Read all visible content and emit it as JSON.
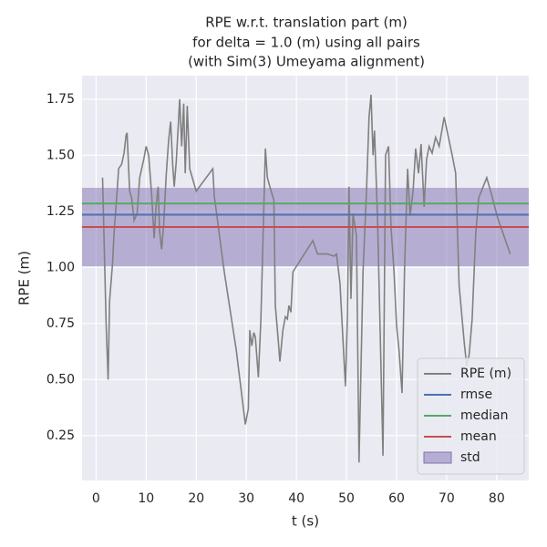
{
  "chart_data": {
    "type": "line",
    "title": [
      "RPE w.r.t. translation part (m)",
      "for delta = 1.0 (m) using all pairs",
      "(with Sim(3) Umeyama alignment)"
    ],
    "xlabel": "t (s)",
    "ylabel": "RPE (m)",
    "xlim": [
      -2.8,
      86.4
    ],
    "ylim": [
      0.05,
      1.855
    ],
    "xticks": [
      0,
      10,
      20,
      30,
      40,
      50,
      60,
      70,
      80
    ],
    "yticks": [
      0.25,
      {
        "value": 0.5,
        "label": "0.50"
      },
      0.75,
      {
        "value": 1.0,
        "label": "1.00"
      },
      1.25,
      {
        "value": 1.5,
        "label": "1.50"
      },
      1.75
    ],
    "grid": true,
    "legend": "lower right",
    "series": [
      {
        "name": "RPE (m)",
        "color": "#808080",
        "x": [
          1.3,
          2.0,
          2.4,
          2.7,
          3.3,
          3.6,
          4.2,
          4.5,
          5.1,
          5.6,
          6.0,
          6.2,
          6.7,
          7.1,
          7.6,
          8.2,
          8.7,
          9.5,
          10.0,
          10.5,
          11.1,
          11.6,
          12.0,
          12.4,
          12.7,
          13.1,
          13.5,
          14.0,
          14.5,
          14.9,
          15.3,
          15.6,
          16.0,
          16.4,
          16.7,
          17.1,
          17.5,
          17.8,
          18.2,
          18.7,
          20.0,
          23.3,
          23.6,
          25.6,
          28.0,
          29.8,
          30.4,
          30.7,
          31.1,
          31.5,
          31.8,
          32.4,
          32.9,
          33.8,
          34.2,
          34.7,
          35.5,
          35.8,
          36.4,
          36.7,
          37.3,
          37.8,
          38.2,
          38.5,
          38.9,
          39.3,
          43.3,
          44.2,
          46.2,
          47.5,
          48.0,
          48.7,
          49.8,
          50.2,
          50.5,
          50.9,
          51.3,
          52.0,
          52.5,
          53.3,
          54.0,
          54.5,
          54.9,
          55.3,
          55.6,
          56.2,
          56.7,
          57.3,
          57.8,
          58.4,
          58.9,
          59.5,
          60.0,
          60.5,
          61.1,
          61.6,
          62.2,
          62.7,
          63.3,
          63.8,
          64.4,
          64.9,
          65.5,
          66.0,
          66.5,
          67.1,
          67.8,
          68.5,
          69.5,
          71.1,
          71.8,
          72.5,
          73.5,
          74.0,
          74.5,
          75.1,
          75.8,
          76.4,
          78.0,
          78.9,
          80.2,
          82.7
        ],
        "values": [
          1.4,
          0.75,
          0.5,
          0.85,
          1.02,
          1.16,
          1.34,
          1.44,
          1.46,
          1.51,
          1.59,
          1.6,
          1.34,
          1.31,
          1.21,
          1.24,
          1.4,
          1.48,
          1.54,
          1.5,
          1.32,
          1.13,
          1.28,
          1.36,
          1.16,
          1.08,
          1.19,
          1.41,
          1.57,
          1.65,
          1.46,
          1.36,
          1.47,
          1.63,
          1.75,
          1.54,
          1.73,
          1.42,
          1.72,
          1.44,
          1.34,
          1.44,
          1.32,
          0.98,
          0.63,
          0.3,
          0.37,
          0.72,
          0.65,
          0.71,
          0.69,
          0.51,
          0.76,
          1.53,
          1.4,
          1.36,
          1.3,
          0.83,
          0.67,
          0.58,
          0.72,
          0.78,
          0.77,
          0.83,
          0.8,
          0.98,
          1.12,
          1.06,
          1.06,
          1.05,
          1.06,
          0.93,
          0.47,
          0.79,
          1.36,
          0.86,
          1.24,
          1.14,
          0.13,
          0.98,
          1.34,
          1.67,
          1.77,
          1.5,
          1.61,
          1.22,
          0.75,
          0.16,
          1.5,
          1.54,
          1.18,
          0.98,
          0.74,
          0.63,
          0.44,
          1.0,
          1.44,
          1.23,
          1.34,
          1.53,
          1.42,
          1.55,
          1.27,
          1.48,
          1.54,
          1.51,
          1.58,
          1.54,
          1.67,
          1.5,
          1.42,
          0.92,
          0.67,
          0.56,
          0.61,
          0.77,
          1.15,
          1.31,
          1.4,
          1.33,
          1.22,
          1.06
        ]
      }
    ],
    "stats": [
      {
        "name": "rmse",
        "color": "#4c72b0",
        "value": 1.235
      },
      {
        "name": "median",
        "color": "#55a868",
        "value": 1.285
      },
      {
        "name": "mean",
        "color": "#c44e52",
        "value": 1.18
      }
    ],
    "std_band": {
      "name": "std",
      "color": "#8172b2",
      "range": [
        1.005,
        1.355
      ]
    }
  }
}
